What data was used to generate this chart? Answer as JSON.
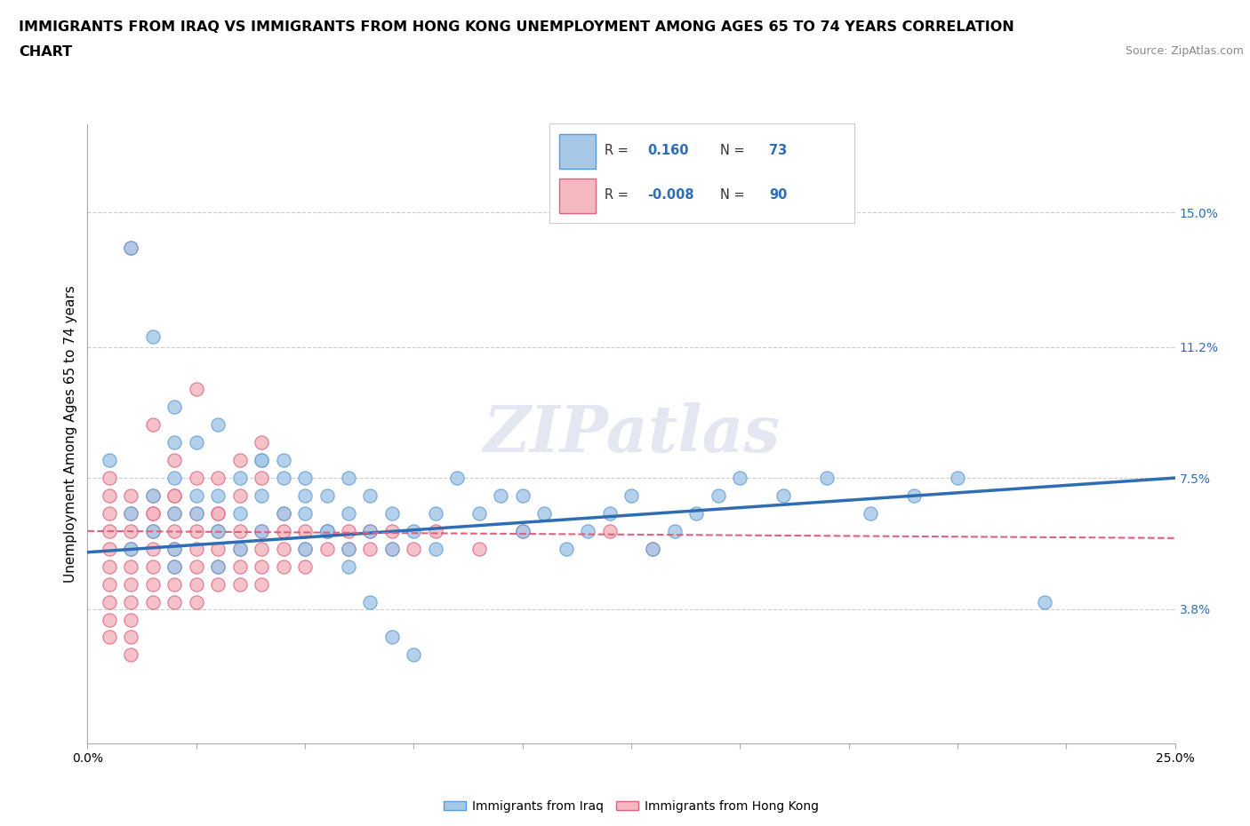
{
  "title_line1": "IMMIGRANTS FROM IRAQ VS IMMIGRANTS FROM HONG KONG UNEMPLOYMENT AMONG AGES 65 TO 74 YEARS CORRELATION",
  "title_line2": "CHART",
  "source_text": "Source: ZipAtlas.com",
  "ylabel": "Unemployment Among Ages 65 to 74 years",
  "xmin": 0.0,
  "xmax": 0.25,
  "ymin": 0.0,
  "ymax": 0.175,
  "right_yticks": [
    0.038,
    0.075,
    0.112,
    0.15
  ],
  "right_yticklabels": [
    "3.8%",
    "7.5%",
    "11.2%",
    "15.0%"
  ],
  "xticks": [
    0.0,
    0.025,
    0.05,
    0.075,
    0.1,
    0.125,
    0.15,
    0.175,
    0.2,
    0.225,
    0.25
  ],
  "color_iraq": "#a8c8e8",
  "color_iraq_edge": "#5b9bd5",
  "color_hk": "#f4b8c1",
  "color_hk_edge": "#e06080",
  "color_iraq_line": "#2e6db4",
  "color_hk_line": "#e06080",
  "watermark": "ZIPatlas",
  "bottom_labels": [
    "Immigrants from Iraq",
    "Immigrants from Hong Kong"
  ],
  "hline_values": [
    0.038,
    0.075,
    0.112,
    0.15
  ],
  "grid_color": "#cccccc",
  "iraq_trend_x": [
    0.0,
    0.25
  ],
  "iraq_trend_y_start": 0.054,
  "iraq_trend_y_end": 0.075,
  "hk_trend_x": [
    0.0,
    0.25
  ],
  "hk_trend_y_start": 0.06,
  "hk_trend_y_end": 0.058,
  "iraq_x": [
    0.005,
    0.01,
    0.01,
    0.015,
    0.015,
    0.02,
    0.02,
    0.02,
    0.02,
    0.02,
    0.025,
    0.025,
    0.03,
    0.03,
    0.03,
    0.035,
    0.035,
    0.04,
    0.04,
    0.04,
    0.045,
    0.045,
    0.05,
    0.05,
    0.05,
    0.055,
    0.055,
    0.06,
    0.06,
    0.06,
    0.065,
    0.065,
    0.07,
    0.07,
    0.075,
    0.08,
    0.08,
    0.085,
    0.09,
    0.095,
    0.1,
    0.1,
    0.105,
    0.11,
    0.115,
    0.12,
    0.125,
    0.13,
    0.135,
    0.14,
    0.145,
    0.15,
    0.16,
    0.17,
    0.18,
    0.19,
    0.2,
    0.22,
    0.01,
    0.015,
    0.02,
    0.025,
    0.03,
    0.035,
    0.04,
    0.045,
    0.05,
    0.055,
    0.06,
    0.065,
    0.07,
    0.075
  ],
  "iraq_y": [
    0.08,
    0.055,
    0.065,
    0.07,
    0.06,
    0.05,
    0.055,
    0.065,
    0.075,
    0.085,
    0.065,
    0.07,
    0.05,
    0.06,
    0.07,
    0.055,
    0.065,
    0.06,
    0.07,
    0.08,
    0.065,
    0.075,
    0.055,
    0.065,
    0.075,
    0.06,
    0.07,
    0.055,
    0.065,
    0.075,
    0.06,
    0.07,
    0.055,
    0.065,
    0.06,
    0.055,
    0.065,
    0.075,
    0.065,
    0.07,
    0.06,
    0.07,
    0.065,
    0.055,
    0.06,
    0.065,
    0.07,
    0.055,
    0.06,
    0.065,
    0.07,
    0.075,
    0.07,
    0.075,
    0.065,
    0.07,
    0.075,
    0.04,
    0.14,
    0.115,
    0.095,
    0.085,
    0.09,
    0.075,
    0.08,
    0.08,
    0.07,
    0.06,
    0.05,
    0.04,
    0.03,
    0.025
  ],
  "hk_x": [
    0.005,
    0.005,
    0.005,
    0.005,
    0.005,
    0.005,
    0.005,
    0.005,
    0.005,
    0.005,
    0.01,
    0.01,
    0.01,
    0.01,
    0.01,
    0.01,
    0.01,
    0.01,
    0.01,
    0.01,
    0.015,
    0.015,
    0.015,
    0.015,
    0.015,
    0.015,
    0.015,
    0.02,
    0.02,
    0.02,
    0.02,
    0.02,
    0.02,
    0.02,
    0.025,
    0.025,
    0.025,
    0.025,
    0.025,
    0.025,
    0.03,
    0.03,
    0.03,
    0.03,
    0.03,
    0.035,
    0.035,
    0.035,
    0.035,
    0.04,
    0.04,
    0.04,
    0.04,
    0.045,
    0.045,
    0.045,
    0.05,
    0.05,
    0.05,
    0.055,
    0.055,
    0.06,
    0.06,
    0.065,
    0.065,
    0.07,
    0.07,
    0.075,
    0.08,
    0.09,
    0.1,
    0.12,
    0.13,
    0.01,
    0.015,
    0.02,
    0.025,
    0.03,
    0.035,
    0.04,
    0.015,
    0.02,
    0.025,
    0.03,
    0.035,
    0.04,
    0.045
  ],
  "hk_y": [
    0.05,
    0.055,
    0.06,
    0.065,
    0.07,
    0.075,
    0.04,
    0.045,
    0.035,
    0.03,
    0.05,
    0.055,
    0.06,
    0.065,
    0.07,
    0.045,
    0.04,
    0.035,
    0.03,
    0.025,
    0.055,
    0.06,
    0.065,
    0.07,
    0.045,
    0.04,
    0.05,
    0.055,
    0.06,
    0.065,
    0.07,
    0.045,
    0.04,
    0.05,
    0.055,
    0.06,
    0.065,
    0.045,
    0.04,
    0.05,
    0.055,
    0.06,
    0.065,
    0.045,
    0.05,
    0.055,
    0.06,
    0.045,
    0.05,
    0.055,
    0.06,
    0.045,
    0.05,
    0.055,
    0.06,
    0.05,
    0.055,
    0.06,
    0.05,
    0.055,
    0.06,
    0.055,
    0.06,
    0.055,
    0.06,
    0.055,
    0.06,
    0.055,
    0.06,
    0.055,
    0.06,
    0.06,
    0.055,
    0.14,
    0.09,
    0.08,
    0.1,
    0.075,
    0.08,
    0.085,
    0.065,
    0.07,
    0.075,
    0.065,
    0.07,
    0.075,
    0.065
  ]
}
